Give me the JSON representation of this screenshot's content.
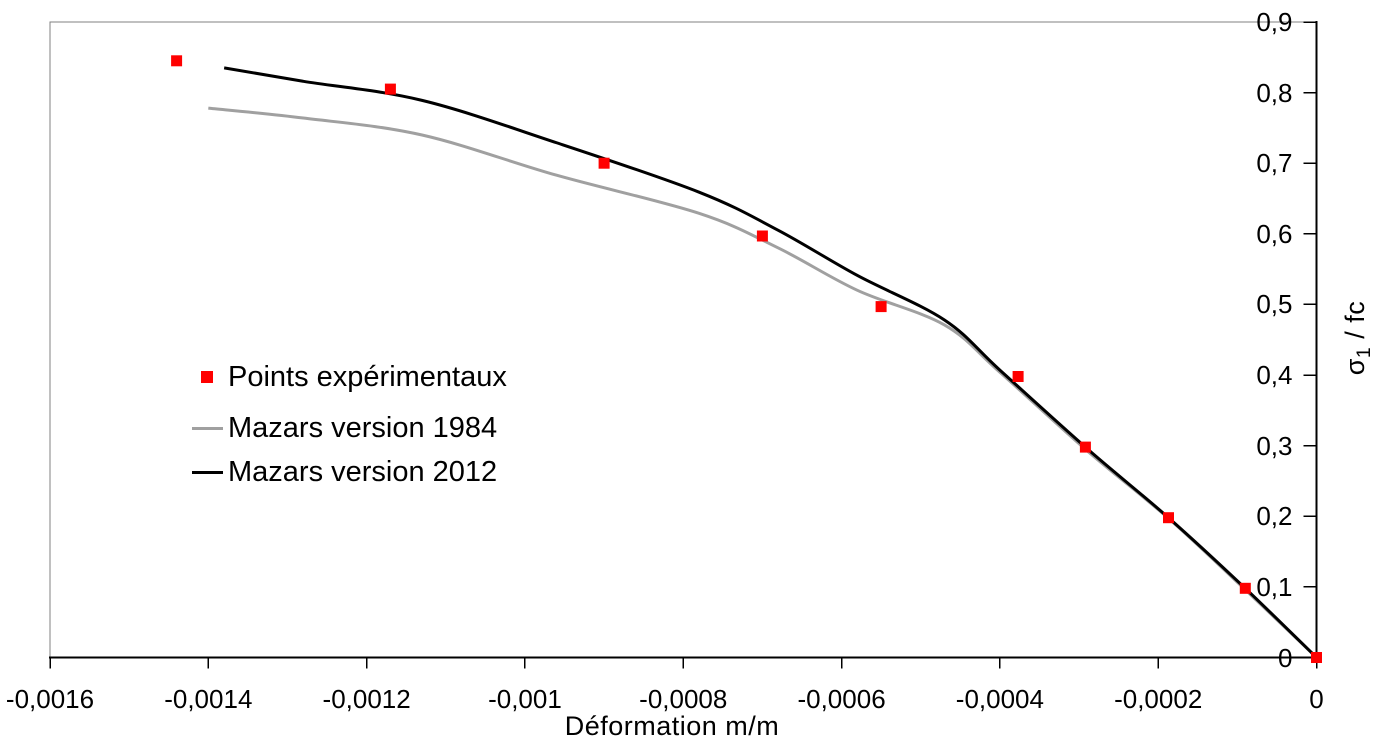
{
  "colors": {
    "background": "#ffffff",
    "axis": "#000000",
    "frame": "#808080",
    "points": "#ff0000",
    "mazars_1984": "#a0a0a0",
    "mazars_2012": "#000000"
  },
  "chart_data": {
    "type": "scatter",
    "title": "",
    "xlabel": "Déformation m/m",
    "ylabel": "σ1 / fc",
    "ylabel_parts": {
      "sigma": "σ",
      "sigma_sub": "1",
      "rest": " / fc"
    },
    "xlim": [
      -0.0016,
      0
    ],
    "ylim": [
      0,
      0.9
    ],
    "grid": false,
    "y_axis_side": "right",
    "legend_position": "center-left-inside",
    "x_ticks": [
      -0.0016,
      -0.0014,
      -0.0012,
      -0.001,
      -0.0008,
      -0.0006,
      -0.0004,
      -0.0002,
      0
    ],
    "x_tick_labels": [
      "-0,0016",
      "-0,0014",
      "-0,0012",
      "-0,001",
      "-0,0008",
      "-0,0006",
      "-0,0004",
      "-0,0002",
      "0"
    ],
    "y_ticks": [
      0,
      0.1,
      0.2,
      0.3,
      0.4,
      0.5,
      0.6,
      0.7,
      0.8,
      0.9
    ],
    "y_tick_labels": [
      "0",
      "0,1",
      "0,2",
      "0,3",
      "0,4",
      "0,5",
      "0,6",
      "0,7",
      "0,8",
      "0,9"
    ],
    "series": [
      {
        "name": "Points expérimentaux",
        "type": "scatter",
        "marker": "square",
        "marker_size": 11,
        "color": "#ff0000",
        "points": [
          [
            -0.00144,
            0.845
          ],
          [
            -0.00117,
            0.805
          ],
          [
            -0.0009,
            0.7
          ],
          [
            -0.0007,
            0.597
          ],
          [
            -0.00055,
            0.497
          ],
          [
            -0.000377,
            0.398
          ],
          [
            -0.000292,
            0.298
          ],
          [
            -0.000187,
            0.198
          ],
          [
            -9e-05,
            0.098
          ],
          [
            0,
            0
          ]
        ]
      },
      {
        "name": "Mazars version 1984",
        "type": "line",
        "color": "#a0a0a0",
        "line_width": 3,
        "points": [
          [
            -0.0014,
            0.778
          ],
          [
            -0.00128,
            0.764
          ],
          [
            -0.00113,
            0.74
          ],
          [
            -0.00096,
            0.683
          ],
          [
            -0.00078,
            0.629
          ],
          [
            -0.00068,
            0.58
          ],
          [
            -0.00058,
            0.52
          ],
          [
            -0.00047,
            0.471
          ],
          [
            -0.0004,
            0.404
          ],
          [
            -0.00029,
            0.293
          ],
          [
            -0.000187,
            0.197
          ],
          [
            -9e-05,
            0.096
          ],
          [
            0,
            0
          ]
        ]
      },
      {
        "name": "Mazars version 2012",
        "type": "line",
        "color": "#000000",
        "line_width": 3,
        "points": [
          [
            -0.00138,
            0.835
          ],
          [
            -0.00128,
            0.816
          ],
          [
            -0.00113,
            0.789
          ],
          [
            -0.00096,
            0.729
          ],
          [
            -0.00078,
            0.659
          ],
          [
            -0.00068,
            0.605
          ],
          [
            -0.00058,
            0.541
          ],
          [
            -0.00047,
            0.478
          ],
          [
            -0.0004,
            0.407
          ],
          [
            -0.00029,
            0.296
          ],
          [
            -0.000187,
            0.198
          ],
          [
            -9e-05,
            0.098
          ],
          [
            0,
            0
          ]
        ]
      }
    ]
  }
}
